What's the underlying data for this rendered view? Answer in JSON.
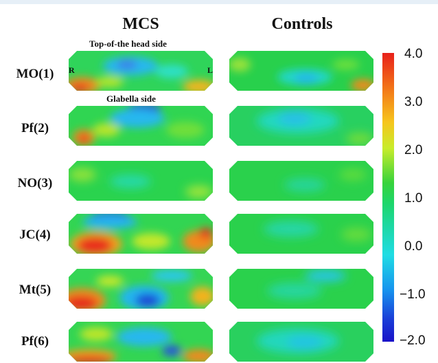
{
  "columns": [
    "MCS",
    "Controls"
  ],
  "rows": [
    "MO(1)",
    "Pf(2)",
    "NO(3)",
    "JC(4)",
    "Mt(5)",
    "Pf(6)"
  ],
  "annotations": {
    "top_side": "Top-of-the head side",
    "bottom_side": "Glabella side",
    "right": "R",
    "left": "L"
  },
  "colorbar": {
    "ticks": [
      "4.0",
      "3.0",
      "2.0",
      "1.0",
      "0.0",
      "−1.0",
      "−2.0"
    ],
    "min": -2.0,
    "max": 4.0
  },
  "colors": {
    "map_base_green": "#27d24f",
    "hot": "#e8201a",
    "cold": "#1a3fd8"
  }
}
